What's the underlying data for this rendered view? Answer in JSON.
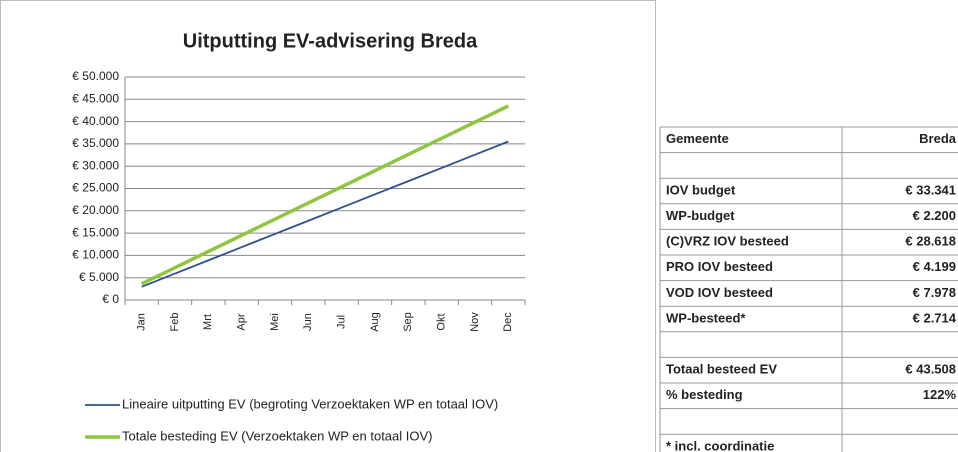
{
  "chart_data": {
    "type": "line",
    "title": "Uitputting EV-advisering Breda",
    "categories": [
      "Jan",
      "Feb",
      "Mrt",
      "Apr",
      "Mei",
      "Jun",
      "Jul",
      "Aug",
      "Sep",
      "Okt",
      "Nov",
      "Dec"
    ],
    "series": [
      {
        "name": "Lineaire uitputting EV (begroting Verzoektaken WP en totaal IOV)",
        "color": "#2f4f8f",
        "values": [
          2962,
          5924,
          8885,
          11847,
          14809,
          17771,
          20732,
          23694,
          26656,
          29618,
          32580,
          35541
        ]
      },
      {
        "name": "Totale besteding EV (Verzoektaken WP en totaal IOV)",
        "color": "#8dc63f",
        "values": [
          3626,
          7251,
          10877,
          14503,
          18128,
          21754,
          25380,
          29005,
          32631,
          36257,
          39882,
          43508
        ]
      }
    ],
    "ylim": [
      0,
      50000
    ],
    "yticks": [
      {
        "value": 0,
        "label": "€ 0"
      },
      {
        "value": 5000,
        "label": "€ 5.000"
      },
      {
        "value": 10000,
        "label": "€ 10.000"
      },
      {
        "value": 15000,
        "label": "€ 15.000"
      },
      {
        "value": 20000,
        "label": "€ 20.000"
      },
      {
        "value": 25000,
        "label": "€ 25.000"
      },
      {
        "value": 30000,
        "label": "€ 30.000"
      },
      {
        "value": 35000,
        "label": "€ 35.000"
      },
      {
        "value": 40000,
        "label": "€ 40.000"
      },
      {
        "value": 45000,
        "label": "€ 45.000"
      },
      {
        "value": 50000,
        "label": "€ 50.000"
      }
    ],
    "grid": true,
    "legend": "bottom"
  },
  "table": {
    "rows": [
      [
        "Gemeente",
        "Breda"
      ],
      [
        "IOV budget",
        "€ 33.341"
      ],
      [
        "WP-budget",
        "€ 2.200"
      ],
      [
        "(C)VRZ IOV besteed",
        "€ 28.618"
      ],
      [
        "PRO IOV besteed",
        "€ 4.199"
      ],
      [
        "VOD IOV besteed",
        "€ 7.978"
      ],
      [
        "WP-besteed*",
        "€ 2.714"
      ],
      [
        "Totaal besteed EV",
        "€ 43.508"
      ],
      [
        "% besteding",
        "122%"
      ]
    ],
    "footnote": "* incl. coordinatie"
  }
}
